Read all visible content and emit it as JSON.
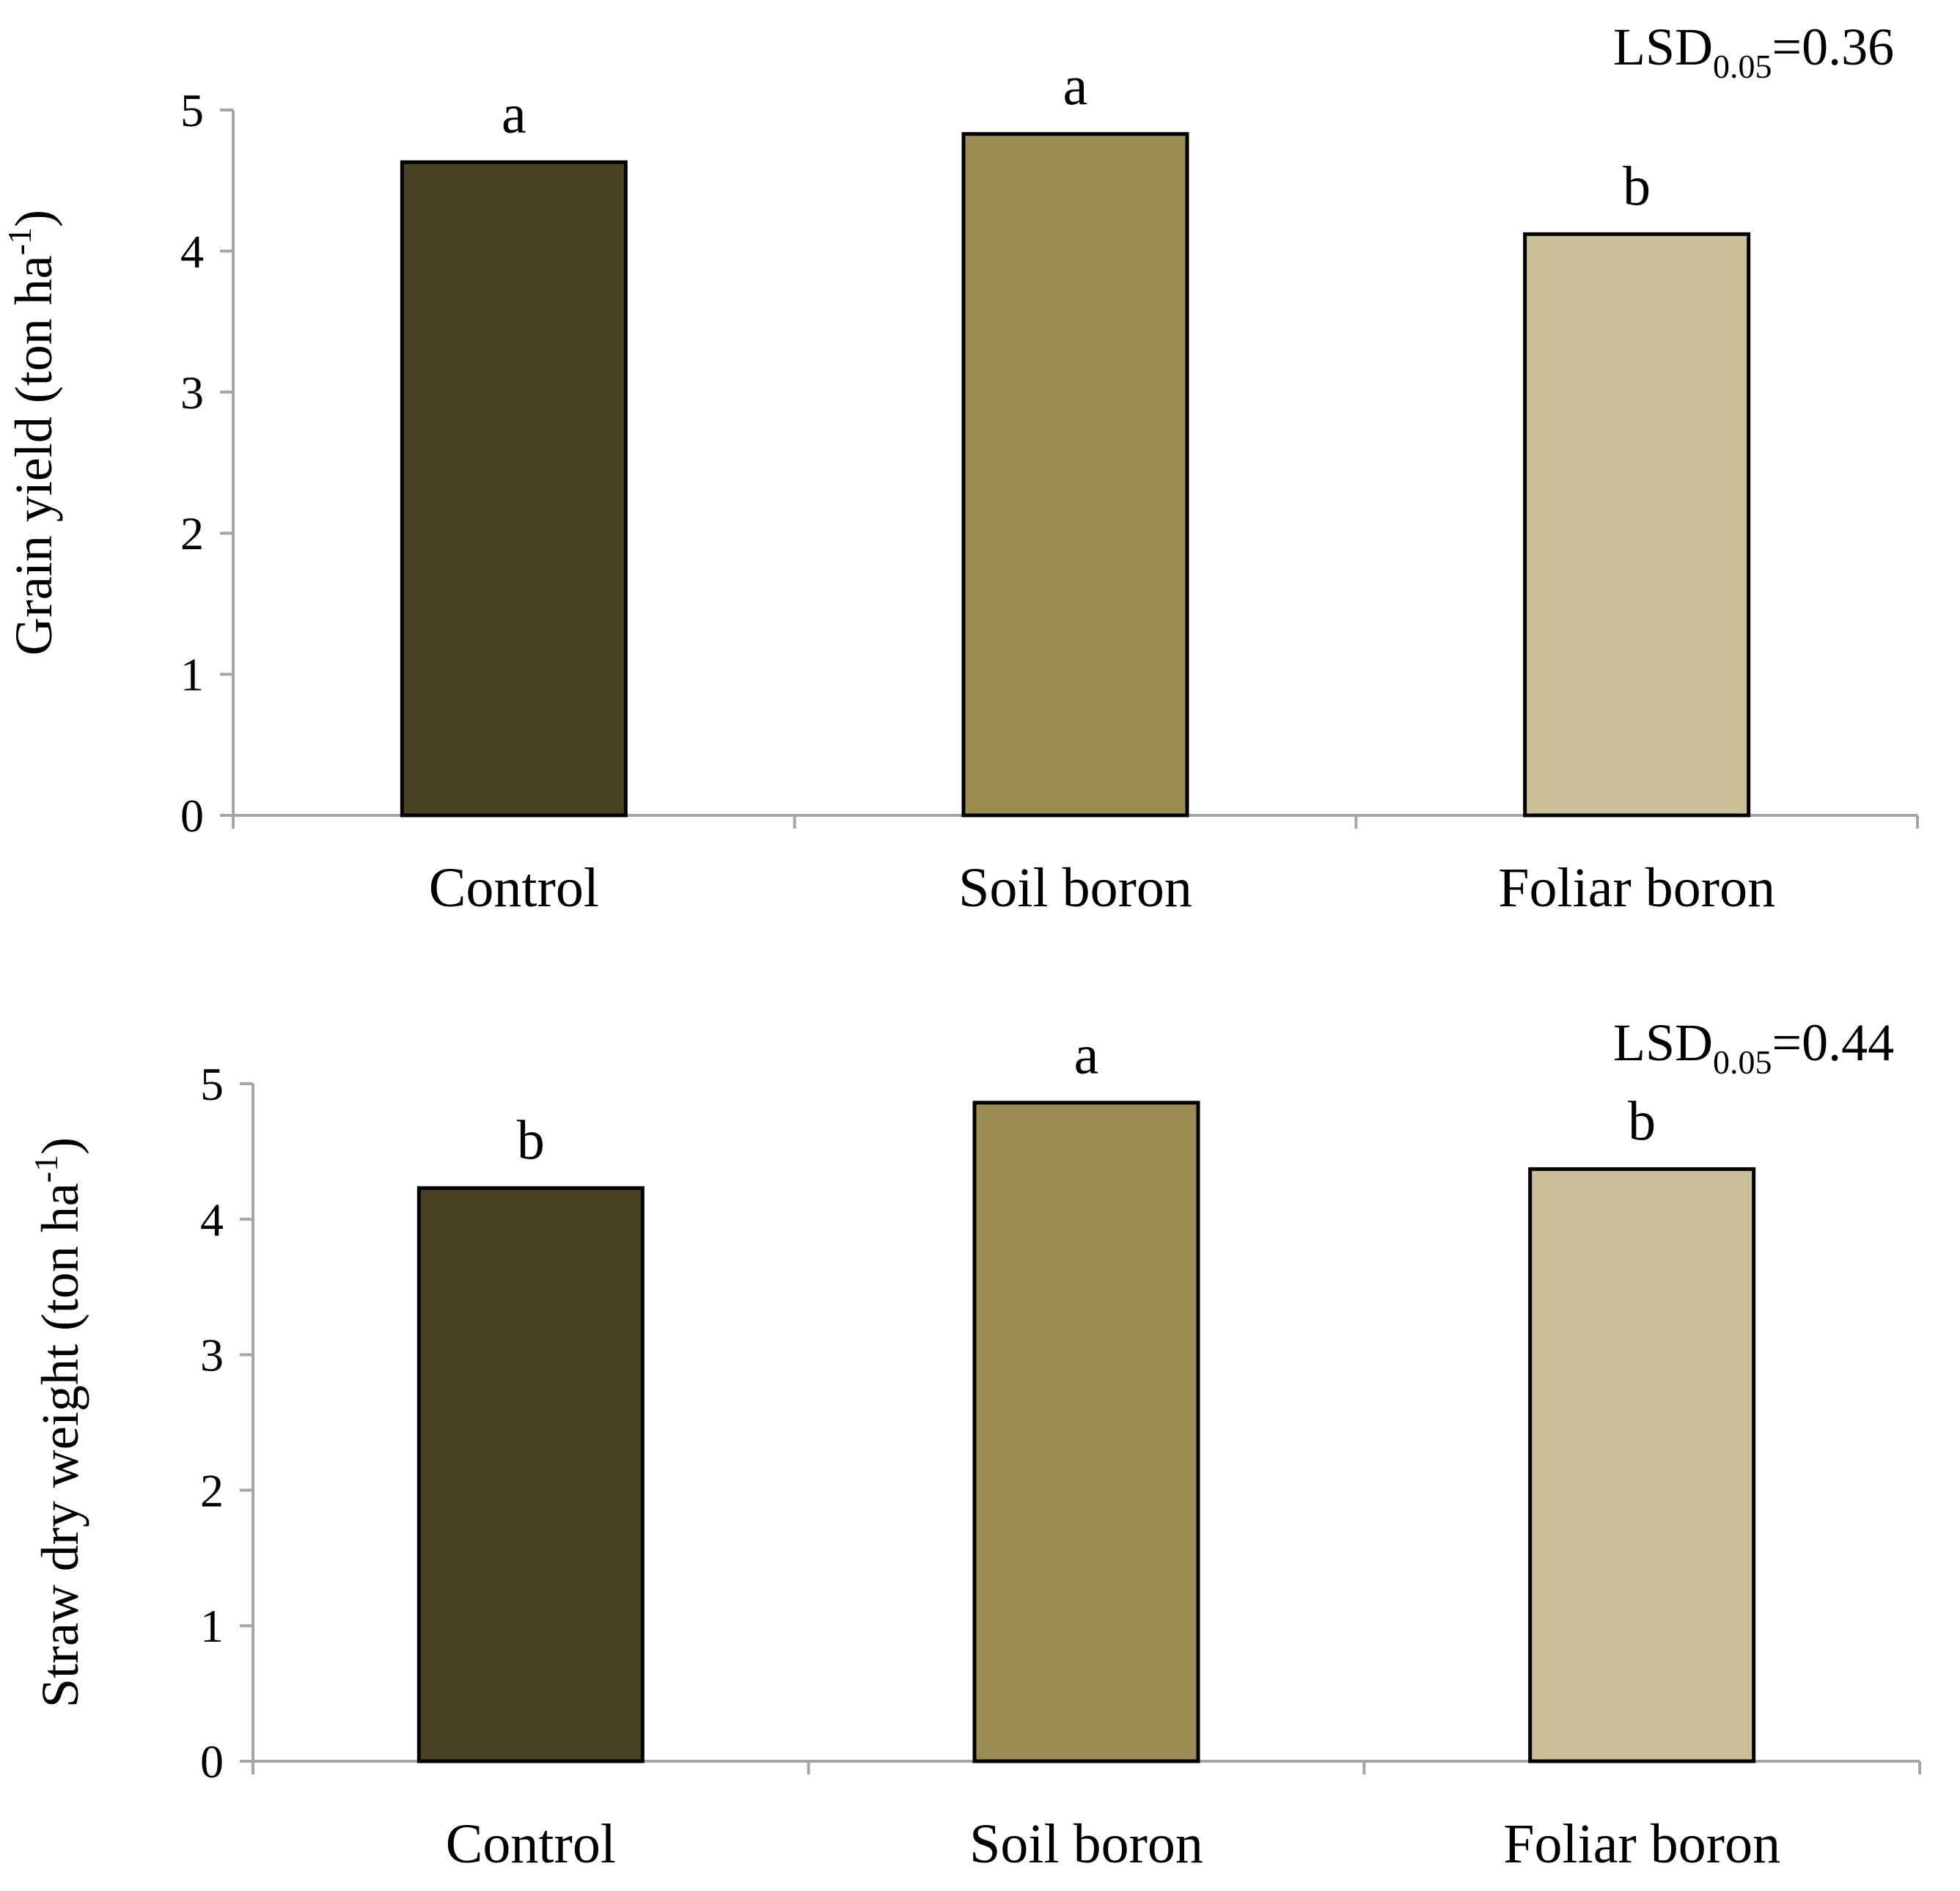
{
  "chart_data": [
    {
      "type": "bar",
      "categories": [
        "Control",
        "Soil boron",
        "Foliar boron"
      ],
      "values": [
        4.63,
        4.83,
        4.12
      ],
      "significance_letters": [
        "a",
        "a",
        "b"
      ],
      "ylabel_main": "Grain yield (ton ha",
      "ylabel_sup": "-1",
      "ylabel_end": ")",
      "lsd_prefix": "LSD",
      "lsd_sub": "0.05",
      "lsd_value": "=0.36",
      "ylim": [
        0,
        5
      ],
      "yticks": [
        "0",
        "1",
        "2",
        "3",
        "4",
        "5"
      ],
      "bar_colors": [
        "#4b4226",
        "#9a8c52",
        "#cbbf97"
      ]
    },
    {
      "type": "bar",
      "categories": [
        "Control",
        "Soil boron",
        "Foliar boron"
      ],
      "values": [
        4.23,
        4.86,
        4.37
      ],
      "significance_letters": [
        "b",
        "a",
        "b"
      ],
      "ylabel_main": "Straw dry weight (ton ha",
      "ylabel_sup": "-1",
      "ylabel_end": ")",
      "lsd_prefix": "LSD",
      "lsd_sub": "0.05",
      "lsd_value": "=0.44",
      "ylim": [
        0,
        5
      ],
      "yticks": [
        "0",
        "1",
        "2",
        "3",
        "4",
        "5"
      ],
      "bar_colors": [
        "#4b4226",
        "#9a8c52",
        "#cbbf97"
      ]
    }
  ]
}
